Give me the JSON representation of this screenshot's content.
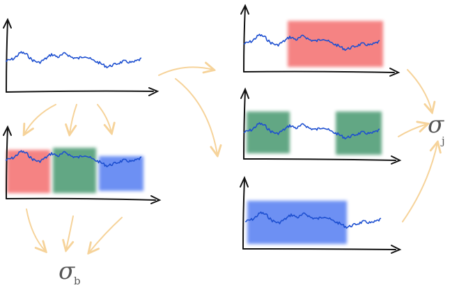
{
  "labels": {
    "sigma_b_symbol": "σ",
    "sigma_b_sub": "b",
    "sigma_j_symbol": "σ",
    "sigma_j_sub": "j"
  },
  "colors": {
    "axis": "#111111",
    "series": "#1d4fd0",
    "arrow": "#f6d39a",
    "block_red": "#f25a5a",
    "block_green": "#2f8a5c",
    "block_blue": "#3d6cf0",
    "label": "#555555"
  }
}
